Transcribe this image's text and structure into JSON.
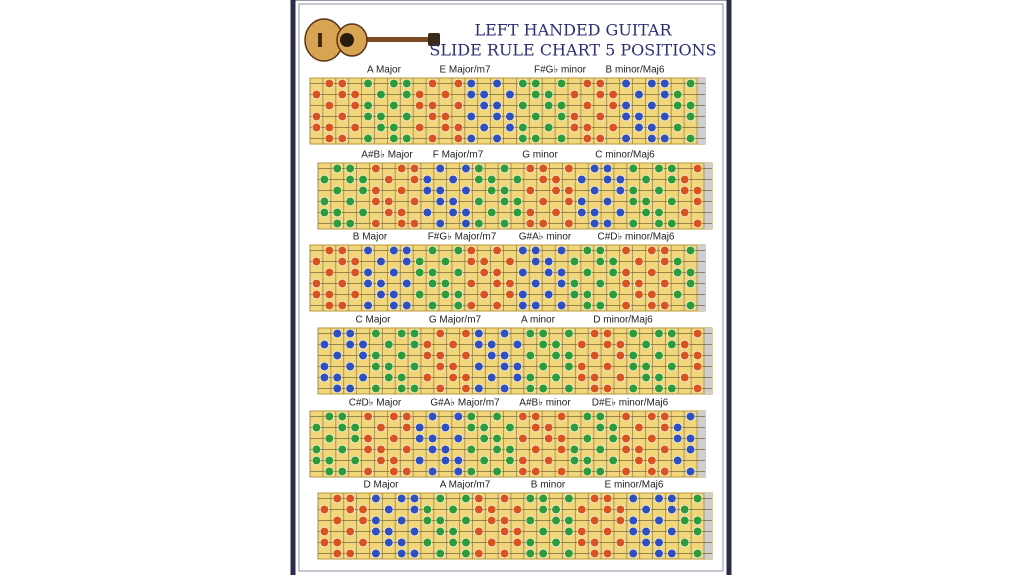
{
  "header": {
    "title_line1": "LEFT HANDED GUITAR",
    "title_line2": "SLIDE RULE CHART 5 POSITIONS"
  },
  "rows": [
    {
      "labels": [
        "A Major",
        "E Major/m7",
        "F#G♭ minor",
        "B minor/Maj6"
      ]
    },
    {
      "labels": [
        "A#B♭ Major",
        "F Major/m7",
        "G minor",
        "C minor/Maj6"
      ]
    },
    {
      "labels": [
        "B Major",
        "F#G♭ Major/m7",
        "G#A♭ minor",
        "C#D♭ minor/Maj6"
      ]
    },
    {
      "labels": [
        "C Major",
        "G Major/m7",
        "A minor",
        "D minor/Maj6"
      ]
    },
    {
      "labels": [
        "C#D♭ Major",
        "G#A♭ Major/m7",
        "A#B♭ minor",
        "D#E♭ minor/Maj6"
      ]
    },
    {
      "labels": [
        "D Major",
        "A Major/m7",
        "B minor",
        "E minor/Maj6"
      ]
    }
  ]
}
